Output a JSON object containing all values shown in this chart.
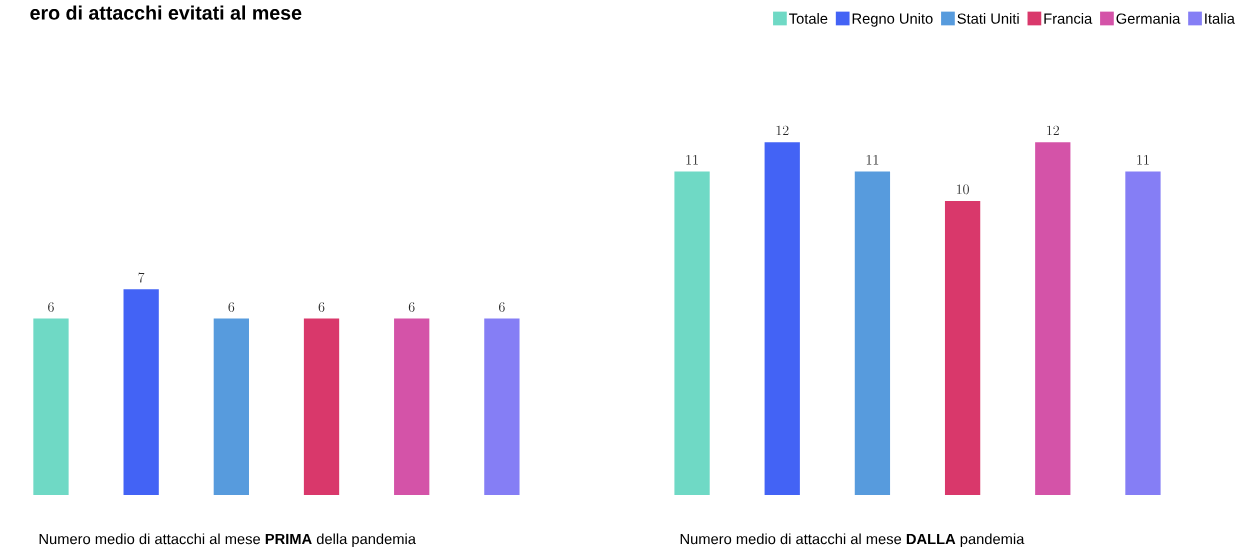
{
  "chart_data": {
    "type": "bar",
    "title": "ero di attacchi evitati al mese",
    "categories": [
      "Numero medio di attacchi al mese **PRIMA** della pandemia",
      "Numero medio di attacchi al mese **DALLA** pandemia"
    ],
    "series": [
      {
        "name": "Totale",
        "color": "#6fd9c5",
        "values": [
          6,
          11
        ]
      },
      {
        "name": "Regno Unito",
        "color": "#4363f5",
        "values": [
          7,
          12
        ]
      },
      {
        "name": "Stati Uniti",
        "color": "#579bdd",
        "values": [
          6,
          11
        ]
      },
      {
        "name": "Francia",
        "color": "#d9386b",
        "values": [
          6,
          10
        ]
      },
      {
        "name": "Germania",
        "color": "#d453a8",
        "values": [
          6,
          12
        ]
      },
      {
        "name": "Italia",
        "color": "#857ef5",
        "values": [
          6,
          11
        ]
      }
    ],
    "data_labels": true,
    "legend": "top right"
  }
}
